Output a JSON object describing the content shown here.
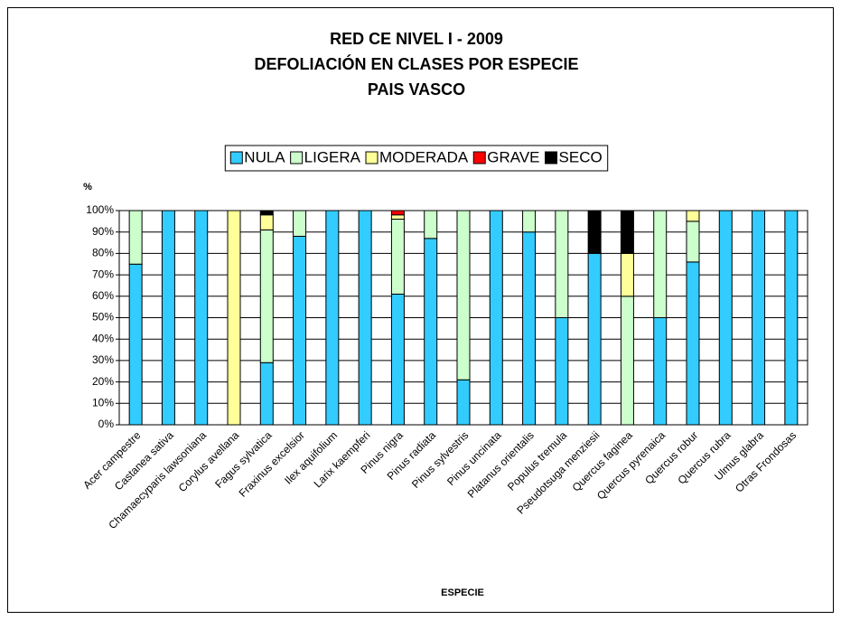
{
  "chart_data": {
    "type": "stacked_bar",
    "title": [
      "RED CE NIVEL I - 2009",
      "DEFOLIACIÓN EN CLASES POR ESPECIE",
      "PAIS VASCO"
    ],
    "y_label": "%",
    "x_label": "ESPECIE",
    "categories": [
      "Acer campestre",
      "Castanea sativa",
      "Chamaecyparis lawsoniana",
      "Corylus avellana",
      "Fagus sylvatica",
      "Fraxinus excelsior",
      "Ilex aquifolium",
      "Larix kaempferi",
      "Pinus nigra",
      "Pinus radiata",
      "Pinus sylvestris",
      "Pinus uncinata",
      "Platanus orientalis",
      "Populus tremula",
      "Pseudotsuga menziesii",
      "Quercus faginea",
      "Quercus pyrenaica",
      "Quercus robur",
      "Quercus rubra",
      "Ulmus glabra",
      "Otras Frondosas"
    ],
    "series": [
      {
        "name": "NULA",
        "color": "#33ccff",
        "values": [
          75,
          100,
          100,
          0,
          29,
          88,
          100,
          100,
          61,
          87,
          21,
          100,
          90,
          50,
          80,
          0,
          50,
          76,
          100,
          100,
          100
        ]
      },
      {
        "name": "LIGERA",
        "color": "#ccffcc",
        "values": [
          25,
          0,
          0,
          0,
          62,
          12,
          0,
          0,
          35,
          13,
          79,
          0,
          10,
          50,
          0,
          60,
          50,
          19,
          0,
          0,
          0
        ]
      },
      {
        "name": "MODERADA",
        "color": "#ffff99",
        "values": [
          0,
          0,
          0,
          100,
          7,
          0,
          0,
          0,
          2,
          0,
          0,
          0,
          0,
          0,
          0,
          20,
          0,
          5,
          0,
          0,
          0
        ]
      },
      {
        "name": "GRAVE",
        "color": "#ff0000",
        "values": [
          0,
          0,
          0,
          0,
          0,
          0,
          0,
          0,
          2,
          0,
          0,
          0,
          0,
          0,
          0,
          0,
          0,
          0,
          0,
          0,
          0
        ]
      },
      {
        "name": "SECO",
        "color": "#000000",
        "values": [
          0,
          0,
          0,
          0,
          2,
          0,
          0,
          0,
          0,
          0,
          0,
          0,
          0,
          0,
          20,
          20,
          0,
          0,
          0,
          0,
          0
        ]
      }
    ],
    "ylim": [
      0,
      100
    ],
    "yticks": [
      {
        "value": 0,
        "label": "0%"
      },
      {
        "value": 10,
        "label": "10%"
      },
      {
        "value": 20,
        "label": "20%"
      },
      {
        "value": 30,
        "label": "30%"
      },
      {
        "value": 40,
        "label": "40%"
      },
      {
        "value": 50,
        "label": "50%"
      },
      {
        "value": 60,
        "label": "60%"
      },
      {
        "value": 70,
        "label": "70%"
      },
      {
        "value": 80,
        "label": "80%"
      },
      {
        "value": 90,
        "label": "90%"
      },
      {
        "value": 100,
        "label": "100%"
      }
    ],
    "grid": true,
    "legend": "top"
  }
}
